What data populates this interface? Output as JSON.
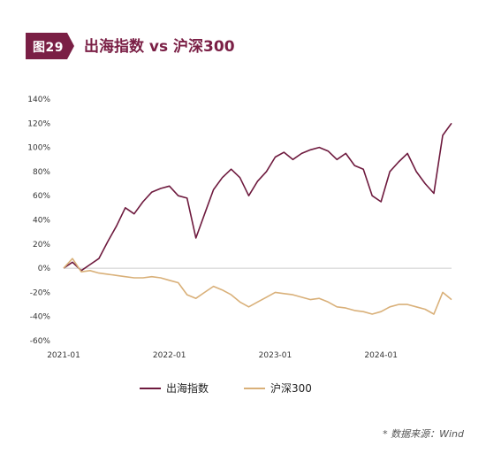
{
  "figure": {
    "badge": "图29",
    "title": "出海指数 vs 沪深300",
    "source": "* 数据来源：Wind",
    "badge_color": "#7a1f45"
  },
  "chart_data": {
    "type": "line",
    "title": "出海指数 vs 沪深300",
    "xlabel": "",
    "ylabel": "",
    "x_ticks": [
      "2021-01",
      "2022-01",
      "2023-01",
      "2024-01"
    ],
    "y_ticks": [
      "140%",
      "120%",
      "100%",
      "80%",
      "60%",
      "40%",
      "20%",
      "0%",
      "-20%",
      "-40%",
      "-60%"
    ],
    "ylim": [
      -60,
      140
    ],
    "xlim": [
      "2021-01",
      "2024-09"
    ],
    "grid": false,
    "legend_position": "bottom",
    "series": [
      {
        "name": "出海指数",
        "color": "#6e1a3e",
        "points": [
          [
            "2021-01",
            0
          ],
          [
            "2021-02",
            5
          ],
          [
            "2021-03",
            -2
          ],
          [
            "2021-04",
            3
          ],
          [
            "2021-05",
            8
          ],
          [
            "2021-06",
            22
          ],
          [
            "2021-07",
            35
          ],
          [
            "2021-08",
            50
          ],
          [
            "2021-09",
            45
          ],
          [
            "2021-10",
            55
          ],
          [
            "2021-11",
            63
          ],
          [
            "2021-12",
            66
          ],
          [
            "2022-01",
            68
          ],
          [
            "2022-02",
            60
          ],
          [
            "2022-03",
            58
          ],
          [
            "2022-04",
            25
          ],
          [
            "2022-05",
            45
          ],
          [
            "2022-06",
            65
          ],
          [
            "2022-07",
            75
          ],
          [
            "2022-08",
            82
          ],
          [
            "2022-09",
            75
          ],
          [
            "2022-10",
            60
          ],
          [
            "2022-11",
            72
          ],
          [
            "2022-12",
            80
          ],
          [
            "2023-01",
            92
          ],
          [
            "2023-02",
            96
          ],
          [
            "2023-03",
            90
          ],
          [
            "2023-04",
            95
          ],
          [
            "2023-05",
            98
          ],
          [
            "2023-06",
            100
          ],
          [
            "2023-07",
            97
          ],
          [
            "2023-08",
            90
          ],
          [
            "2023-09",
            95
          ],
          [
            "2023-10",
            85
          ],
          [
            "2023-11",
            82
          ],
          [
            "2023-12",
            60
          ],
          [
            "2024-01",
            55
          ],
          [
            "2024-02",
            80
          ],
          [
            "2024-03",
            88
          ],
          [
            "2024-04",
            95
          ],
          [
            "2024-05",
            80
          ],
          [
            "2024-06",
            70
          ],
          [
            "2024-07",
            62
          ],
          [
            "2024-08",
            110
          ],
          [
            "2024-09",
            120
          ]
        ]
      },
      {
        "name": "沪深300",
        "color": "#d9b079",
        "points": [
          [
            "2021-01",
            0
          ],
          [
            "2021-02",
            8
          ],
          [
            "2021-03",
            -3
          ],
          [
            "2021-04",
            -2
          ],
          [
            "2021-05",
            -4
          ],
          [
            "2021-06",
            -5
          ],
          [
            "2021-07",
            -6
          ],
          [
            "2021-08",
            -7
          ],
          [
            "2021-09",
            -8
          ],
          [
            "2021-10",
            -8
          ],
          [
            "2021-11",
            -7
          ],
          [
            "2021-12",
            -8
          ],
          [
            "2022-01",
            -10
          ],
          [
            "2022-02",
            -12
          ],
          [
            "2022-03",
            -22
          ],
          [
            "2022-04",
            -25
          ],
          [
            "2022-05",
            -20
          ],
          [
            "2022-06",
            -15
          ],
          [
            "2022-07",
            -18
          ],
          [
            "2022-08",
            -22
          ],
          [
            "2022-09",
            -28
          ],
          [
            "2022-10",
            -32
          ],
          [
            "2022-11",
            -28
          ],
          [
            "2022-12",
            -24
          ],
          [
            "2023-01",
            -20
          ],
          [
            "2023-02",
            -21
          ],
          [
            "2023-03",
            -22
          ],
          [
            "2023-04",
            -24
          ],
          [
            "2023-05",
            -26
          ],
          [
            "2023-06",
            -25
          ],
          [
            "2023-07",
            -28
          ],
          [
            "2023-08",
            -32
          ],
          [
            "2023-09",
            -33
          ],
          [
            "2023-10",
            -35
          ],
          [
            "2023-11",
            -36
          ],
          [
            "2023-12",
            -38
          ],
          [
            "2024-01",
            -36
          ],
          [
            "2024-02",
            -32
          ],
          [
            "2024-03",
            -30
          ],
          [
            "2024-04",
            -30
          ],
          [
            "2024-05",
            -32
          ],
          [
            "2024-06",
            -34
          ],
          [
            "2024-07",
            -38
          ],
          [
            "2024-08",
            -20
          ],
          [
            "2024-09",
            -26
          ]
        ]
      }
    ]
  }
}
